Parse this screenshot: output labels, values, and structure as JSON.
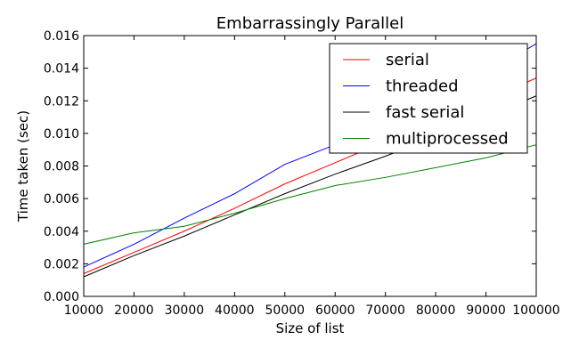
{
  "chart_data": {
    "type": "line",
    "title": "Embarrassingly Parallel",
    "xlabel": "Size of list",
    "ylabel": "Time taken (sec)",
    "xlim": [
      10000,
      100000
    ],
    "ylim": [
      0,
      0.016
    ],
    "x_ticks": [
      10000,
      20000,
      30000,
      40000,
      50000,
      60000,
      70000,
      80000,
      90000,
      100000
    ],
    "y_ticks": [
      0.0,
      0.002,
      0.004,
      0.006,
      0.008,
      0.01,
      0.012,
      0.014,
      0.016
    ],
    "x_tick_labels": [
      "10000",
      "20000",
      "30000",
      "40000",
      "50000",
      "60000",
      "70000",
      "80000",
      "90000",
      "100000"
    ],
    "y_tick_labels": [
      "0.000",
      "0.002",
      "0.004",
      "0.006",
      "0.008",
      "0.010",
      "0.012",
      "0.014",
      "0.016"
    ],
    "grid": false,
    "legend_position": "top-right",
    "x": [
      10000,
      20000,
      30000,
      40000,
      50000,
      60000,
      70000,
      80000,
      90000,
      100000
    ],
    "series": [
      {
        "name": "serial",
        "color": "#ff0000",
        "values": [
          0.0014,
          0.0027,
          0.004,
          0.0054,
          0.0069,
          0.0082,
          0.0095,
          0.0108,
          0.012,
          0.0134
        ]
      },
      {
        "name": "threaded",
        "color": "#0000ff",
        "values": [
          0.0018,
          0.0032,
          0.0048,
          0.0063,
          0.0081,
          0.0093,
          0.0109,
          0.0123,
          0.0137,
          0.0155
        ]
      },
      {
        "name": "fast serial",
        "color": "#000000",
        "values": [
          0.0012,
          0.0025,
          0.0037,
          0.005,
          0.0063,
          0.0075,
          0.0086,
          0.0098,
          0.011,
          0.0123
        ]
      },
      {
        "name": "multiprocessed",
        "color": "#008000",
        "values": [
          0.0032,
          0.0039,
          0.0043,
          0.0051,
          0.006,
          0.0068,
          0.0073,
          0.0079,
          0.0085,
          0.0093
        ]
      }
    ]
  }
}
